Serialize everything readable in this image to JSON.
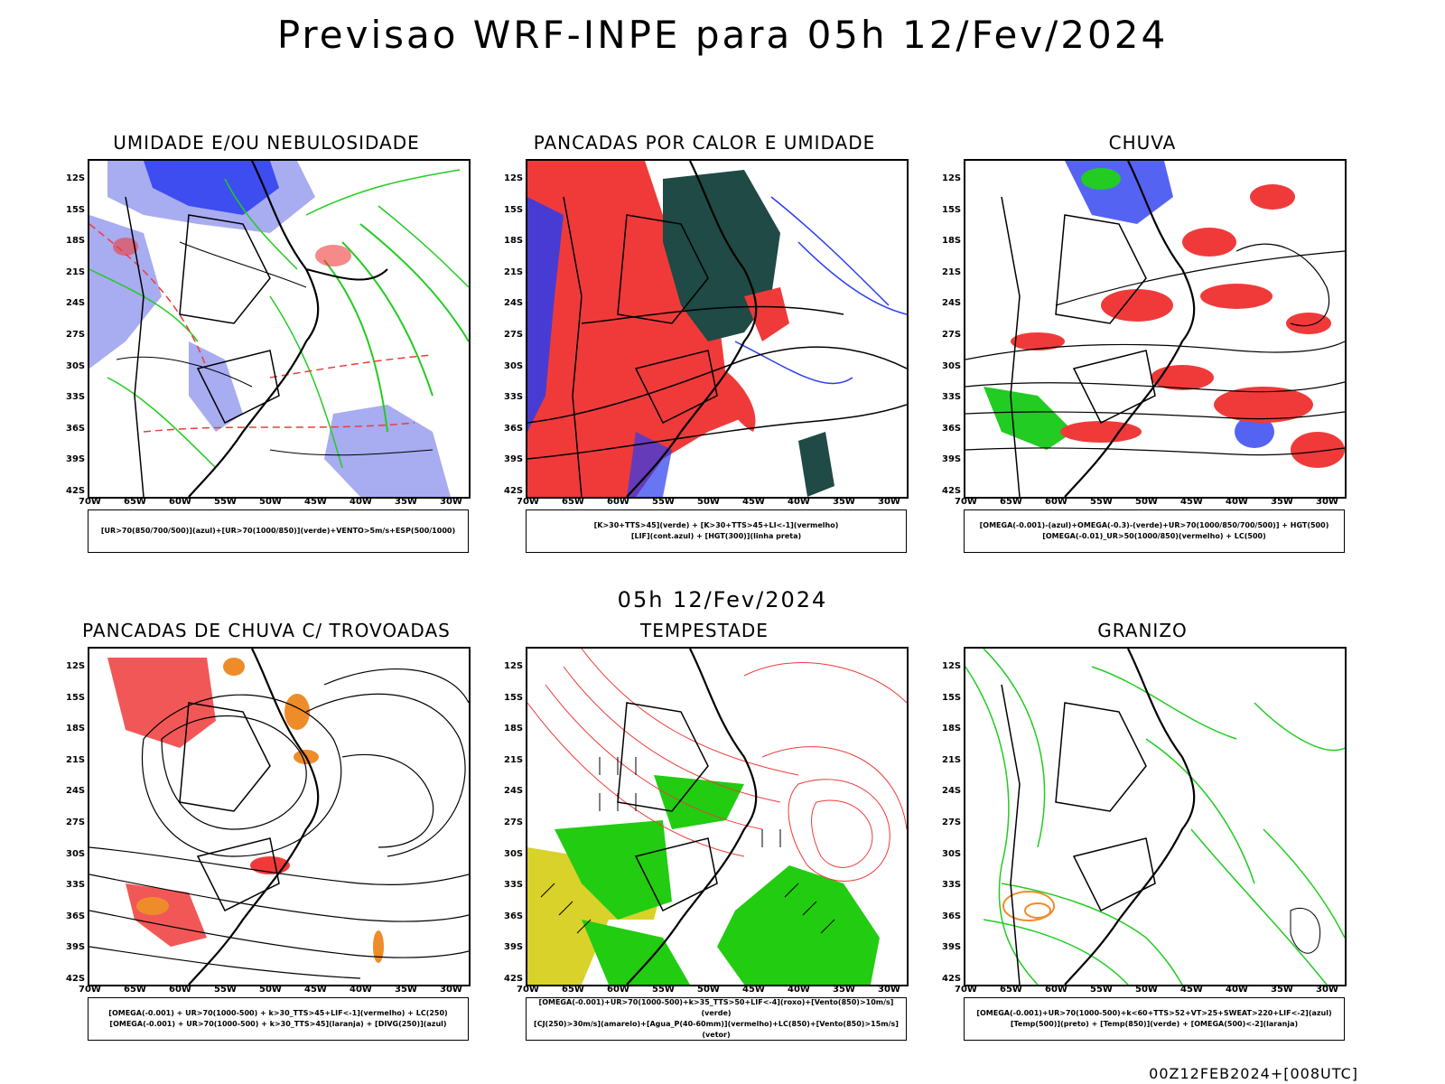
{
  "header": {
    "title": "Previsao WRF-INPE  para 05h 12/Fev/2024"
  },
  "subtitle": "05h 12/Fev/2024",
  "footer": "00Z12FEB2024+[008UTC]",
  "axes": {
    "lat_labels": [
      "12S",
      "15S",
      "18S",
      "21S",
      "24S",
      "27S",
      "30S",
      "33S",
      "36S",
      "39S",
      "42S"
    ],
    "lon_labels": [
      "70W",
      "65W",
      "60W",
      "55W",
      "50W",
      "45W",
      "40W",
      "35W",
      "30W"
    ]
  },
  "colors": {
    "blue": "#2a3cf0",
    "lightblue": "#a8acf0",
    "green": "#22cc22",
    "red": "#f03a3a",
    "darkteal": "#1f4a45",
    "orange": "#ee8c2a",
    "yellow": "#d8d22a",
    "brightgreen": "#22cc11"
  },
  "panels": [
    {
      "title": "UMIDADE E/OU NEBULOSIDADE",
      "legend": [
        "[UR>70(850/700/500)](azul)+[UR>70(1000/850)](verde)+VENTO>5m/s+ESP(500/1000)"
      ]
    },
    {
      "title": "PANCADAS POR CALOR E UMIDADE",
      "legend": [
        "[K>30+TTS>45](verde) + [K>30+TTS>45+LI<-1](vermelho)",
        "[LIF](cont.azul) + [HGT(300)](linha preta)"
      ]
    },
    {
      "title": "CHUVA",
      "legend": [
        "[OMEGA(-0.001)-(azul)+OMEGA(-0.3)-(verde)+UR>70(1000/850/700/500)] + HGT(500)",
        "[OMEGA(-0.01)_UR>50(1000/850)(vermelho) + LC(500)"
      ]
    },
    {
      "title": "PANCADAS DE CHUVA C/ TROVOADAS",
      "legend": [
        "[OMEGA(-0.001) + UR>70(1000-500) + k>30_TTS>45+LIF<-1](vermelho) + LC(250)",
        "[OMEGA(-0.001) + UR>70(1000-500) + k>30_TTS>45](laranja) + [DIVG(250)](azul)"
      ]
    },
    {
      "title": "TEMPESTADE",
      "legend": [
        "[OMEGA(-0.001)+UR>70(1000-500)+k>35_TTS>50+LIF<-4](roxo)+[Vento(850)>10m/s](verde)",
        "[CJ(250)>30m/s](amarelo)+[Agua_P(40-60mm)](vermelho)+LC(850)+[Vento(850)>15m/s](vetor)"
      ]
    },
    {
      "title": "GRANIZO",
      "legend": [
        "[OMEGA(-0.001)+UR>70(1000-500)+k<60+TTS>52+VT>25+SWEAT>220+LIF<-2](azul)",
        "[Temp(500)](preto) + [Temp(850)](verde) + [OMEGA(500)<-2](laranja)"
      ]
    }
  ]
}
